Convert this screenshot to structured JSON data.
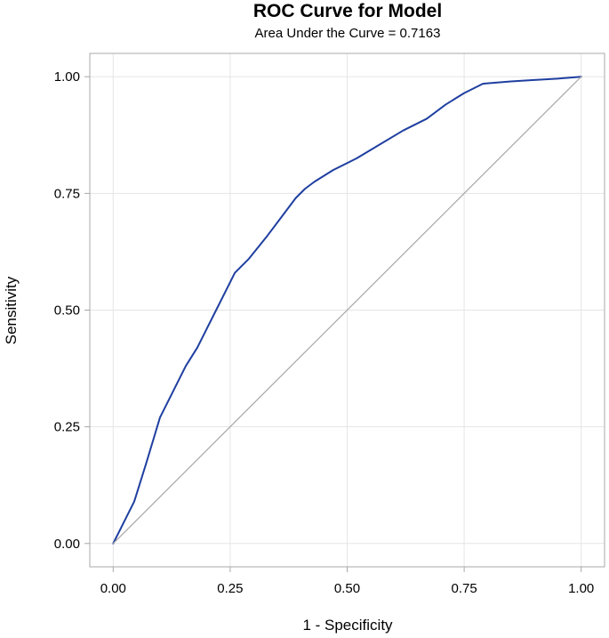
{
  "chart_data": {
    "type": "line",
    "title": "ROC Curve for Model",
    "subtitle": "Area Under the Curve = 0.7163",
    "xlabel": "1 - Specificity",
    "ylabel": "Sensitivity",
    "xlim": [
      -0.05,
      1.05
    ],
    "ylim": [
      -0.05,
      1.05
    ],
    "xticks": [
      0,
      0.25,
      0.5,
      0.75,
      1.0
    ],
    "yticks": [
      0,
      0.25,
      0.5,
      0.75,
      1.0
    ],
    "xtick_labels": [
      "0.00",
      "0.25",
      "0.50",
      "0.75",
      "1.00"
    ],
    "ytick_labels": [
      "0.00",
      "0.25",
      "0.50",
      "0.75",
      "1.00"
    ],
    "grid": true,
    "series": [
      {
        "color": "#1f3fa0",
        "x": [
          0.0,
          0.02,
          0.045,
          0.07,
          0.1,
          0.13,
          0.155,
          0.18,
          0.2,
          0.22,
          0.24,
          0.26,
          0.29,
          0.33,
          0.36,
          0.39,
          0.41,
          0.43,
          0.47,
          0.52,
          0.57,
          0.62,
          0.67,
          0.71,
          0.75,
          0.79,
          0.8,
          0.85,
          0.9,
          0.95,
          1.0
        ],
        "y": [
          0.0,
          0.04,
          0.09,
          0.17,
          0.27,
          0.33,
          0.38,
          0.42,
          0.46,
          0.5,
          0.54,
          0.58,
          0.61,
          0.66,
          0.7,
          0.74,
          0.76,
          0.775,
          0.8,
          0.825,
          0.855,
          0.885,
          0.91,
          0.94,
          0.965,
          0.985,
          0.986,
          0.99,
          0.993,
          0.996,
          1.0
        ]
      },
      {
        "color": "#a8a8a8",
        "x": [
          0,
          1
        ],
        "y": [
          0,
          1
        ]
      }
    ],
    "colors": {
      "frame": "#a8a8a8",
      "grid": "#e5e5e5"
    }
  }
}
